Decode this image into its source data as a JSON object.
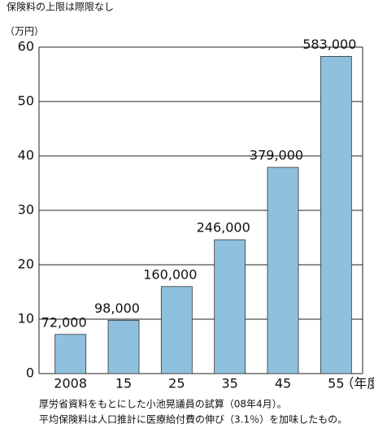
{
  "chart_data": {
    "type": "bar",
    "title": "保険料の上限は際限なし",
    "y_label": "（万円）",
    "x_label": "（年度）",
    "categories": [
      "2008",
      "15",
      "25",
      "35",
      "45",
      "55"
    ],
    "values": [
      7.2,
      9.8,
      16.0,
      24.6,
      37.9,
      58.3
    ],
    "value_labels": [
      "72,000",
      "98,000",
      "160,000",
      "246,000",
      "379,000",
      "583,000"
    ],
    "color": "#8fc1de",
    "ylim": [
      0,
      60
    ],
    "yticks": [
      0,
      10,
      20,
      30,
      40,
      50,
      60
    ],
    "grid": true,
    "notes": [
      "厚労省資料をもとにした小池晃議員の試算（08年4月）。",
      "平均保険料は人口推計に医療給付費の伸び（3.1％）を加味したもの。"
    ]
  }
}
